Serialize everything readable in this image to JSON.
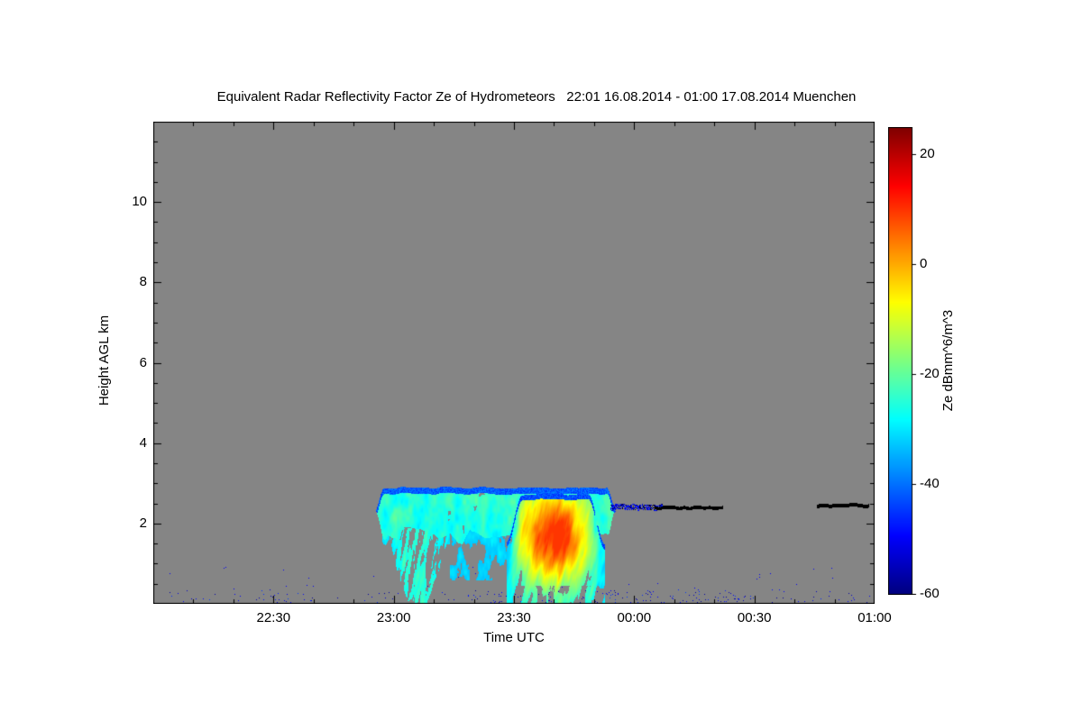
{
  "chart_data": {
    "type": "heatmap",
    "title": "Equivalent Radar Reflectivity Factor Ze of Hydrometeors   22:01 16.08.2014 - 01:00 17.08.2014 Muenchen",
    "xlabel": "Time UTC",
    "ylabel": "Height AGL km",
    "plot_bg": "#858585",
    "x_axis": {
      "span_minutes": 180,
      "start_time": "22:00",
      "end_time": "01:00",
      "major_ticks": [
        {
          "label": "22:30",
          "minutes": 30
        },
        {
          "label": "23:00",
          "minutes": 60
        },
        {
          "label": "23:30",
          "minutes": 90
        },
        {
          "label": "00:00",
          "minutes": 120
        },
        {
          "label": "00:30",
          "minutes": 150
        },
        {
          "label": "01:00",
          "minutes": 180
        }
      ],
      "minor_tick_minutes": 10
    },
    "y_axis": {
      "min_km": 0,
      "max_km": 12,
      "major_ticks": [
        {
          "label": "2",
          "km": 2
        },
        {
          "label": "4",
          "km": 4
        },
        {
          "label": "6",
          "km": 6
        },
        {
          "label": "8",
          "km": 8
        },
        {
          "label": "10",
          "km": 10
        }
      ],
      "minor_tick_km": 0.5
    },
    "colorbar": {
      "label": "Ze dBmm^6/m^3",
      "colormap": "jet",
      "min": -60,
      "max": 25,
      "ticks": [
        {
          "label": "20",
          "value": 20
        },
        {
          "label": "0",
          "value": 0
        },
        {
          "label": "-20",
          "value": -20
        },
        {
          "label": "-40",
          "value": -40
        },
        {
          "label": "-60",
          "value": -60
        }
      ]
    },
    "features": {
      "layer": {
        "t0": 55,
        "t1": 115.5,
        "base_km": 1.78,
        "top_km": 2.9,
        "mean_dbz": -25
      },
      "fallstreaks": {
        "t0": 57,
        "t1": 74,
        "ground_t0": 61,
        "ground_t1": 71,
        "mean_dbz": -31
      },
      "mid_patches": {
        "t0": 74,
        "t1": 89,
        "base_km": 0.95,
        "top_km": 1.6,
        "mean_dbz": -33
      },
      "core": {
        "t0": 88,
        "t1": 112.5,
        "top_km": 2.75,
        "peak_t": 100,
        "peak_h_km": 1.7,
        "peak_dbz": 7
      },
      "dark_dotted_line": {
        "t0": 114,
        "t1": 127,
        "h_km": 2.42
      },
      "black_line_1": {
        "t0": 125,
        "t1": 142,
        "h_km": 2.4
      },
      "black_line_2": {
        "t0": 165.5,
        "t1": 178.5,
        "h_km": 2.45
      },
      "surface_clutter": {
        "h_max_km": 0.38,
        "mean_dbz": -54
      }
    }
  }
}
